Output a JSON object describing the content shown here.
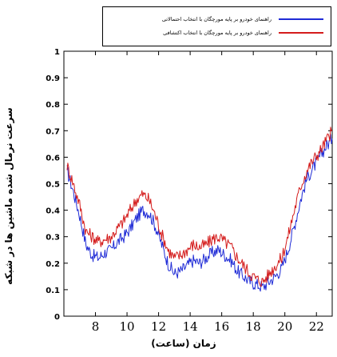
{
  "chart_data": {
    "type": "line",
    "title": "",
    "xlabel": "زمان (ساعت)",
    "ylabel": "سرعت نرمال شده ماشین ها در شبکه",
    "xlim": [
      6,
      23
    ],
    "ylim": [
      0,
      1
    ],
    "xticks": [
      8,
      10,
      12,
      14,
      16,
      18,
      20,
      22
    ],
    "yticks": [
      0,
      0.1,
      0.2,
      0.3,
      0.4,
      0.5,
      0.6,
      0.7,
      0.8,
      0.9,
      1
    ],
    "legend_position": "top-right",
    "series": [
      {
        "name": "راهنمای خودرو بر پایه مورچگان با انتخاب احتمالاتی",
        "color": "#1f2bd6",
        "x": [
          6.2,
          6.6,
          7.0,
          7.4,
          7.8,
          8.2,
          8.6,
          9.0,
          9.4,
          9.8,
          10.2,
          10.6,
          11.0,
          11.4,
          11.8,
          12.2,
          12.6,
          13.0,
          13.4,
          13.8,
          14.2,
          14.6,
          15.0,
          15.4,
          15.8,
          16.2,
          16.6,
          17.0,
          17.4,
          17.8,
          18.2,
          18.6,
          19.0,
          19.4,
          19.8,
          20.2,
          20.6,
          21.0,
          21.4,
          21.8,
          22.2,
          22.6,
          23.0
        ],
        "values": [
          0.55,
          0.47,
          0.38,
          0.27,
          0.23,
          0.22,
          0.24,
          0.25,
          0.28,
          0.3,
          0.33,
          0.37,
          0.4,
          0.39,
          0.34,
          0.27,
          0.2,
          0.16,
          0.17,
          0.19,
          0.21,
          0.2,
          0.22,
          0.24,
          0.25,
          0.23,
          0.21,
          0.17,
          0.15,
          0.13,
          0.12,
          0.11,
          0.13,
          0.15,
          0.18,
          0.25,
          0.34,
          0.44,
          0.52,
          0.56,
          0.6,
          0.64,
          0.67
        ]
      },
      {
        "name": "راهنمای خودرو بر پایه مورچگان با انتخاب اکتشافی",
        "color": "#d41c1c",
        "x": [
          6.2,
          6.6,
          7.0,
          7.4,
          7.8,
          8.2,
          8.6,
          9.0,
          9.4,
          9.8,
          10.2,
          10.6,
          11.0,
          11.4,
          11.8,
          12.2,
          12.6,
          13.0,
          13.4,
          13.8,
          14.2,
          14.6,
          15.0,
          15.4,
          15.8,
          16.2,
          16.6,
          17.0,
          17.4,
          17.8,
          18.2,
          18.6,
          19.0,
          19.4,
          19.8,
          20.2,
          20.6,
          21.0,
          21.4,
          21.8,
          22.2,
          22.6,
          23.0
        ],
        "values": [
          0.57,
          0.5,
          0.42,
          0.32,
          0.3,
          0.28,
          0.29,
          0.3,
          0.33,
          0.36,
          0.4,
          0.44,
          0.46,
          0.44,
          0.38,
          0.31,
          0.25,
          0.22,
          0.23,
          0.25,
          0.27,
          0.26,
          0.27,
          0.29,
          0.3,
          0.28,
          0.26,
          0.22,
          0.19,
          0.16,
          0.14,
          0.13,
          0.16,
          0.19,
          0.22,
          0.3,
          0.4,
          0.49,
          0.55,
          0.59,
          0.62,
          0.66,
          0.7
        ]
      }
    ]
  }
}
